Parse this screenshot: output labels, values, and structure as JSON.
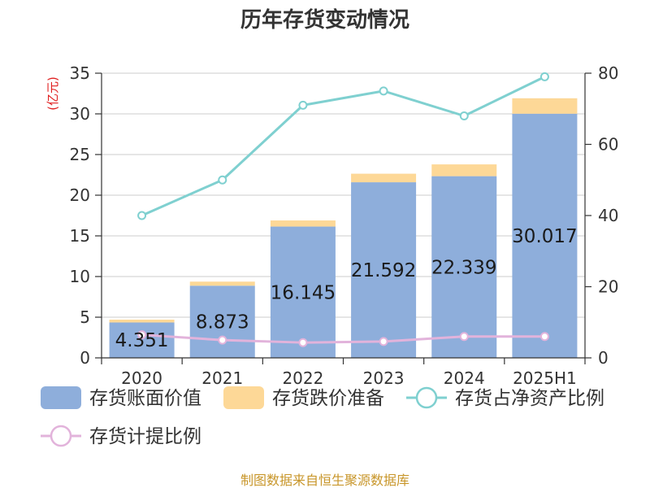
{
  "chart_data": {
    "type": "bar",
    "title": "历年存货变动情况",
    "y_unit_label": "(亿元)",
    "categories": [
      "2020",
      "2021",
      "2022",
      "2023",
      "2024",
      "2025H1"
    ],
    "series": [
      {
        "name": "存货账面价值",
        "kind": "bar",
        "stack": "inv",
        "color": "#8eaedb",
        "axis": "left",
        "values": [
          4.351,
          8.873,
          16.145,
          21.592,
          22.339,
          30.017
        ],
        "labels": [
          "4.351",
          "8.873",
          "16.145",
          "21.592",
          "22.339",
          "30.017"
        ]
      },
      {
        "name": "存货跌价准备",
        "kind": "bar",
        "stack": "inv",
        "color": "#fdd897",
        "axis": "left",
        "values": [
          0.35,
          0.5,
          0.75,
          1.05,
          1.45,
          1.9
        ]
      },
      {
        "name": "存货占净资产比例",
        "kind": "line",
        "color": "#7fd0d0",
        "axis": "right",
        "values": [
          40,
          50,
          71,
          75,
          68,
          79
        ]
      },
      {
        "name": "存货计提比例",
        "kind": "line",
        "color": "#e2b3db",
        "axis": "right",
        "values": [
          6.5,
          5,
          4.3,
          4.6,
          6,
          6
        ]
      }
    ],
    "y_left": {
      "min": 0,
      "max": 35,
      "ticks": [
        0,
        5,
        10,
        15,
        20,
        25,
        30,
        35
      ]
    },
    "y_right": {
      "min": 0,
      "max": 80,
      "ticks": [
        0,
        20,
        40,
        60,
        80
      ]
    },
    "grid": true,
    "legend_position": "bottom",
    "source_note": "制图数据来自恒生聚源数据库"
  }
}
